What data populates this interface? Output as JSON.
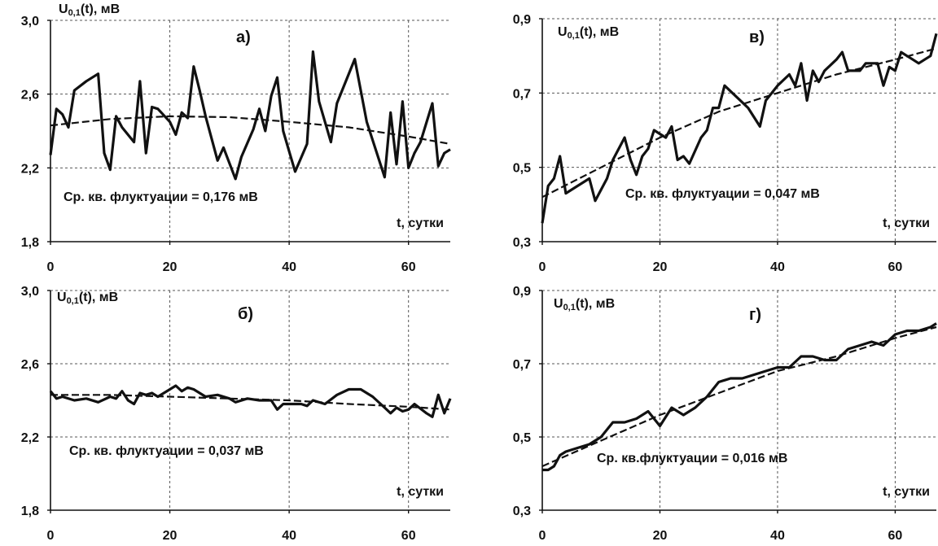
{
  "chart_data": [
    {
      "panel": "а)",
      "type": "line",
      "ylabel": "U",
      "ylabel_sub": "0,1",
      "ylabel_tail": "(t), мВ",
      "xlabel": "t, сутки",
      "annotation": "Ср. кв. флуктуации = 0,176 мВ",
      "xlim": [
        0,
        67
      ],
      "ylim": [
        1.8,
        3.0
      ],
      "xticks": [
        "0",
        "20",
        "40",
        "60"
      ],
      "xtick_values": [
        0,
        20,
        40,
        60
      ],
      "yticks": [
        "1,8",
        "2,2",
        "2,6",
        "3,0"
      ],
      "ytick_values": [
        1.8,
        2.2,
        2.6,
        3.0
      ],
      "grid": true,
      "series": [
        {
          "style": "solid",
          "x": [
            0,
            1,
            2,
            3,
            4,
            6,
            8,
            9,
            10,
            11,
            12,
            14,
            15,
            16,
            17,
            18,
            20,
            21,
            22,
            23,
            24,
            25,
            26,
            28,
            29,
            31,
            32,
            34,
            35,
            36,
            37,
            38,
            39,
            40,
            41,
            43,
            44,
            45,
            46,
            47,
            48,
            51,
            53,
            56,
            57,
            58,
            59,
            60,
            61,
            62,
            64,
            65,
            66,
            67
          ],
          "y": [
            2.27,
            2.52,
            2.49,
            2.42,
            2.62,
            2.67,
            2.71,
            2.28,
            2.19,
            2.48,
            2.42,
            2.34,
            2.67,
            2.28,
            2.53,
            2.52,
            2.45,
            2.38,
            2.5,
            2.47,
            2.75,
            2.62,
            2.48,
            2.24,
            2.31,
            2.14,
            2.26,
            2.41,
            2.52,
            2.4,
            2.59,
            2.69,
            2.4,
            2.29,
            2.18,
            2.33,
            2.83,
            2.56,
            2.45,
            2.34,
            2.55,
            2.79,
            2.45,
            2.15,
            2.5,
            2.22,
            2.56,
            2.2,
            2.28,
            2.34,
            2.55,
            2.21,
            2.28,
            2.3
          ]
        },
        {
          "style": "dashed",
          "x": [
            0,
            10,
            20,
            30,
            40,
            50,
            60,
            67
          ],
          "y": [
            2.43,
            2.465,
            2.48,
            2.475,
            2.45,
            2.42,
            2.37,
            2.33
          ]
        }
      ]
    },
    {
      "panel": "б)",
      "type": "line",
      "ylabel": "U",
      "ylabel_sub": "0,1",
      "ylabel_tail": "(t), мВ",
      "xlabel": "t, сутки",
      "annotation": "Ср. кв. флуктуации = 0,037 мВ",
      "xlim": [
        0,
        67
      ],
      "ylim": [
        1.8,
        3.0
      ],
      "xticks": [
        "0",
        "20",
        "40",
        "60"
      ],
      "xtick_values": [
        0,
        20,
        40,
        60
      ],
      "yticks": [
        "1,8",
        "2,2",
        "2,6",
        "3,0"
      ],
      "ytick_values": [
        1.8,
        2.2,
        2.6,
        3.0
      ],
      "grid": true,
      "series": [
        {
          "style": "solid",
          "x": [
            0,
            1,
            2,
            4,
            6,
            8,
            10,
            11,
            12,
            13,
            14,
            15,
            16,
            17,
            18,
            20,
            21,
            22,
            23,
            24,
            25,
            26,
            28,
            30,
            31,
            33,
            35,
            37,
            38,
            39,
            40,
            42,
            43,
            44,
            46,
            48,
            50,
            52,
            54,
            56,
            57,
            58,
            59,
            60,
            61,
            63,
            64,
            65,
            66,
            67
          ],
          "y": [
            2.45,
            2.41,
            2.42,
            2.4,
            2.41,
            2.39,
            2.42,
            2.41,
            2.45,
            2.4,
            2.38,
            2.44,
            2.43,
            2.44,
            2.42,
            2.46,
            2.48,
            2.45,
            2.47,
            2.46,
            2.44,
            2.42,
            2.43,
            2.41,
            2.39,
            2.41,
            2.4,
            2.4,
            2.35,
            2.38,
            2.38,
            2.38,
            2.37,
            2.4,
            2.38,
            2.43,
            2.46,
            2.46,
            2.42,
            2.36,
            2.33,
            2.36,
            2.34,
            2.35,
            2.38,
            2.33,
            2.31,
            2.43,
            2.33,
            2.41
          ]
        },
        {
          "style": "dashed",
          "x": [
            0,
            10,
            20,
            30,
            40,
            50,
            60,
            67
          ],
          "y": [
            2.43,
            2.43,
            2.42,
            2.41,
            2.4,
            2.38,
            2.365,
            2.35
          ]
        }
      ]
    },
    {
      "panel": "в)",
      "type": "line",
      "ylabel": "U",
      "ylabel_sub": "0,1",
      "ylabel_tail": "(t), мВ",
      "xlabel": "t, сутки",
      "annotation": "Ср. кв. флуктуации = 0,047 мВ",
      "xlim": [
        0,
        67
      ],
      "ylim": [
        0.3,
        0.9
      ],
      "xticks": [
        "0",
        "20",
        "40",
        "60"
      ],
      "xtick_values": [
        0,
        20,
        40,
        60
      ],
      "yticks": [
        "0,3",
        "0,5",
        "0,7",
        "0,9"
      ],
      "ytick_values": [
        0.3,
        0.5,
        0.7,
        0.9
      ],
      "grid": true,
      "series": [
        {
          "style": "solid",
          "x": [
            0,
            1,
            2,
            3,
            4,
            6,
            8,
            9,
            10,
            11,
            12,
            14,
            15,
            16,
            17,
            18,
            19,
            20,
            21,
            22,
            23,
            24,
            25,
            27,
            28,
            29,
            30,
            31,
            33,
            35,
            37,
            38,
            40,
            42,
            43,
            44,
            45,
            46,
            47,
            48,
            50,
            51,
            52,
            54,
            55,
            57,
            58,
            59,
            60,
            61,
            62,
            63,
            64,
            65,
            66,
            67
          ],
          "y": [
            0.35,
            0.45,
            0.47,
            0.53,
            0.43,
            0.45,
            0.47,
            0.41,
            0.44,
            0.47,
            0.52,
            0.58,
            0.52,
            0.48,
            0.53,
            0.55,
            0.6,
            0.59,
            0.58,
            0.61,
            0.52,
            0.53,
            0.51,
            0.58,
            0.6,
            0.66,
            0.66,
            0.72,
            0.69,
            0.66,
            0.61,
            0.68,
            0.72,
            0.75,
            0.72,
            0.78,
            0.68,
            0.76,
            0.73,
            0.76,
            0.79,
            0.81,
            0.76,
            0.76,
            0.78,
            0.78,
            0.72,
            0.77,
            0.76,
            0.81,
            0.8,
            0.79,
            0.78,
            0.79,
            0.8,
            0.86
          ]
        },
        {
          "style": "dashed",
          "x": [
            0,
            10,
            20,
            30,
            40,
            50,
            60,
            67
          ],
          "y": [
            0.42,
            0.5,
            0.58,
            0.65,
            0.7,
            0.75,
            0.79,
            0.82
          ]
        }
      ]
    },
    {
      "panel": "г)",
      "type": "line",
      "ylabel": "U",
      "ylabel_sub": "0,1",
      "ylabel_tail": "(t), мВ",
      "xlabel": "t, сутки",
      "annotation": "Ср. кв.флуктуации = 0,016 мВ",
      "xlim": [
        0,
        67
      ],
      "ylim": [
        0.3,
        0.9
      ],
      "xticks": [
        "0",
        "20",
        "40",
        "60"
      ],
      "xtick_values": [
        0,
        20,
        40,
        60
      ],
      "yticks": [
        "0,3",
        "0,5",
        "0,7",
        "0,9"
      ],
      "ytick_values": [
        0.3,
        0.5,
        0.7,
        0.9
      ],
      "grid": true,
      "series": [
        {
          "style": "solid",
          "x": [
            0,
            1,
            2,
            3,
            4,
            6,
            8,
            10,
            12,
            14,
            16,
            18,
            20,
            22,
            24,
            26,
            28,
            30,
            32,
            34,
            36,
            38,
            40,
            42,
            44,
            46,
            48,
            50,
            52,
            54,
            56,
            58,
            60,
            62,
            64,
            66,
            67
          ],
          "y": [
            0.41,
            0.41,
            0.42,
            0.45,
            0.46,
            0.47,
            0.48,
            0.5,
            0.54,
            0.54,
            0.55,
            0.57,
            0.53,
            0.58,
            0.56,
            0.58,
            0.61,
            0.65,
            0.66,
            0.66,
            0.67,
            0.68,
            0.69,
            0.69,
            0.72,
            0.72,
            0.71,
            0.71,
            0.74,
            0.75,
            0.76,
            0.75,
            0.78,
            0.79,
            0.79,
            0.8,
            0.81
          ]
        },
        {
          "style": "dashed",
          "x": [
            0,
            10,
            20,
            30,
            40,
            50,
            60,
            67
          ],
          "y": [
            0.42,
            0.49,
            0.56,
            0.62,
            0.68,
            0.72,
            0.77,
            0.8
          ]
        }
      ]
    }
  ]
}
